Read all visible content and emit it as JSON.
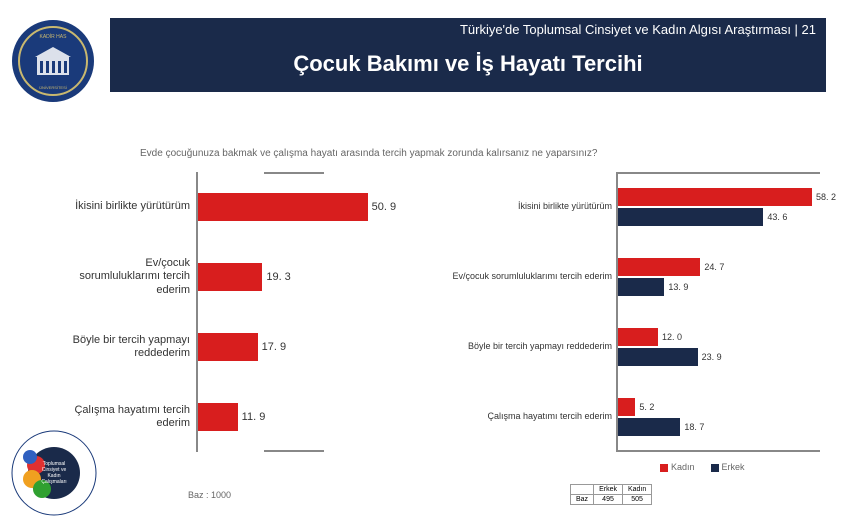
{
  "header": {
    "top": "Türkiye'de Toplumsal Cinsiyet ve Kadın Algısı Araştırması | 21",
    "main": "Çocuk Bakımı ve İş Hayatı Tercihi"
  },
  "question": "Evde çocuğunuza bakmak ve çalışma hayatı arasında tercih yapmak zorunda kalırsanız ne yaparsınız?",
  "left_chart": {
    "type": "bar",
    "orientation": "horizontal",
    "bar_color": "#d81e1e",
    "axis_color": "#888888",
    "max": 60,
    "label_fontsize": 11,
    "value_fontsize": 11,
    "items": [
      {
        "label": "İkisini birlikte yürütürüm",
        "value": 50.9
      },
      {
        "label": "Ev/çocuk sorumluluklarımı tercih ederim",
        "value": 19.3
      },
      {
        "label": "Böyle bir tercih yapmayı reddederim",
        "value": 17.9
      },
      {
        "label": "Çalışma hayatımı tercih ederim",
        "value": 11.9
      }
    ]
  },
  "right_chart": {
    "type": "grouped-bar",
    "orientation": "horizontal",
    "axis_color": "#888888",
    "max": 60,
    "label_fontsize": 9,
    "value_fontsize": 9,
    "series_colors": {
      "kadin": "#d81e1e",
      "erkek": "#1a2a4a"
    },
    "groups": [
      {
        "label": "İkisini birlikte yürütürüm",
        "kadin": 58.2,
        "erkek": 43.6
      },
      {
        "label": "Ev/çocuk sorumluluklarımı tercih ederim",
        "kadin": 24.7,
        "erkek": 13.9
      },
      {
        "label": "Böyle bir tercih yapmayı reddederim",
        "kadin": 12.0,
        "erkek": 23.9
      },
      {
        "label": "Çalışma hayatımı tercih ederim",
        "kadin": 5.2,
        "erkek": 18.7
      }
    ]
  },
  "legend": {
    "items": [
      {
        "label": "Kadın",
        "color": "#d81e1e"
      },
      {
        "label": "Erkek",
        "color": "#1a2a4a"
      }
    ]
  },
  "baz_left": "Baz : 1000",
  "baz_table": {
    "headers": [
      "",
      "Erkek",
      "Kadın"
    ],
    "row": [
      "Baz",
      "495",
      "505"
    ]
  },
  "logos": {
    "top_alt": "Kadir Has Üniversitesi",
    "bottom_alt": "Toplumsal Cinsiyet ve Kadın Çalışmaları Araştırma Merkezi"
  },
  "colors": {
    "header_bg": "#1a2a4a",
    "background": "#ffffff",
    "text": "#333333",
    "muted": "#666666"
  }
}
